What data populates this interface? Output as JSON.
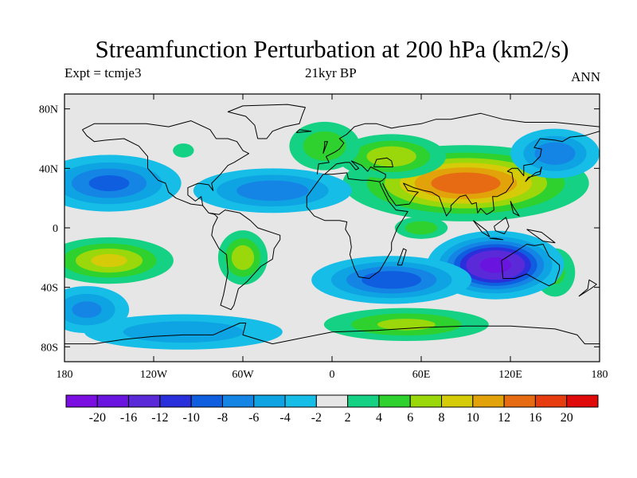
{
  "title": "Streamfunction Perturbation at 200 hPa (km2/s)",
  "subtitle_left": "Expt = tcmje3",
  "subtitle_center": "21kyr BP",
  "subtitle_right": "ANN",
  "map": {
    "lon_range": [
      -180,
      180
    ],
    "lat_range": [
      -90,
      90
    ],
    "x_ticks": [
      {
        "value": -180,
        "label": "180"
      },
      {
        "value": -120,
        "label": "120W"
      },
      {
        "value": -60,
        "label": "60W"
      },
      {
        "value": 0,
        "label": "0"
      },
      {
        "value": 60,
        "label": "60E"
      },
      {
        "value": 120,
        "label": "120E"
      },
      {
        "value": 180,
        "label": "180"
      }
    ],
    "y_ticks": [
      {
        "value": 80,
        "label": "80N"
      },
      {
        "value": 40,
        "label": "40N"
      },
      {
        "value": 0,
        "label": "0"
      },
      {
        "value": -40,
        "label": "40S"
      },
      {
        "value": -80,
        "label": "80S"
      }
    ],
    "background_color": "#e6e6e6"
  },
  "colorbar": {
    "colors": [
      "#7b0ee0",
      "#6a14df",
      "#5b2ad8",
      "#2a2fdc",
      "#0f5ee0",
      "#1585e5",
      "#0ea3e2",
      "#16bde6",
      "#e6e6e6",
      "#14d184",
      "#2ed12d",
      "#9ad80c",
      "#d6cb08",
      "#e2a20a",
      "#e66b12",
      "#e63c10",
      "#e00a0a"
    ],
    "labels": [
      "-20",
      "-16",
      "-12",
      "-10",
      "-8",
      "-6",
      "-4",
      "-2",
      "2",
      "4",
      "6",
      "8",
      "10",
      "12",
      "16",
      "20"
    ]
  },
  "fields": [
    {
      "lon": 90,
      "lat": 30,
      "amp": 14,
      "sx": 42,
      "sy": 13
    },
    {
      "lon": 40,
      "lat": 48,
      "amp": 8,
      "sx": 22,
      "sy": 9
    },
    {
      "lon": -5,
      "lat": 55,
      "amp": 6,
      "sx": 16,
      "sy": 11
    },
    {
      "lon": -100,
      "lat": 52,
      "amp": 4,
      "sx": 6,
      "sy": 4
    },
    {
      "lon": -150,
      "lat": 30,
      "amp": -9,
      "sx": 28,
      "sy": 11
    },
    {
      "lon": -40,
      "lat": 25,
      "amp": -8,
      "sx": 32,
      "sy": 9
    },
    {
      "lon": 150,
      "lat": 50,
      "amp": -8,
      "sx": 18,
      "sy": 10
    },
    {
      "lon": -150,
      "lat": -22,
      "amp": 9,
      "sx": 25,
      "sy": 9
    },
    {
      "lon": -60,
      "lat": -20,
      "amp": 8,
      "sx": 10,
      "sy": 11
    },
    {
      "lon": 60,
      "lat": 0,
      "amp": 6,
      "sx": 12,
      "sy": 5
    },
    {
      "lon": 50,
      "lat": -65,
      "amp": 7,
      "sx": 35,
      "sy": 7
    },
    {
      "lon": 150,
      "lat": -30,
      "amp": 5,
      "sx": 10,
      "sy": 12
    },
    {
      "lon": 110,
      "lat": -25,
      "amp": -18,
      "sx": 22,
      "sy": 11
    },
    {
      "lon": 40,
      "lat": -35,
      "amp": -10,
      "sx": 30,
      "sy": 9
    },
    {
      "lon": -100,
      "lat": -70,
      "amp": -6,
      "sx": 45,
      "sy": 8
    },
    {
      "lon": -165,
      "lat": -55,
      "amp": -7,
      "sx": 18,
      "sy": 10
    }
  ],
  "coastlines": [
    [
      [
        -168,
        66
      ],
      [
        -160,
        70
      ],
      [
        -140,
        70
      ],
      [
        -125,
        70
      ],
      [
        -110,
        68
      ],
      [
        -95,
        72
      ],
      [
        -82,
        66
      ],
      [
        -78,
        60
      ],
      [
        -70,
        60
      ],
      [
        -64,
        58
      ],
      [
        -60,
        52
      ],
      [
        -56,
        50
      ],
      [
        -66,
        44
      ],
      [
        -70,
        42
      ],
      [
        -76,
        35
      ],
      [
        -81,
        30
      ],
      [
        -80,
        25
      ],
      [
        -83,
        29
      ],
      [
        -90,
        30
      ],
      [
        -97,
        27
      ],
      [
        -97,
        22
      ],
      [
        -92,
        18
      ],
      [
        -88,
        21
      ],
      [
        -87,
        15
      ],
      [
        -83,
        10
      ],
      [
        -79,
        9
      ],
      [
        -77,
        7
      ],
      [
        -80,
        1
      ],
      [
        -81,
        -5
      ],
      [
        -76,
        -14
      ],
      [
        -71,
        -18
      ],
      [
        -70,
        -30
      ],
      [
        -73,
        -45
      ],
      [
        -75,
        -52
      ],
      [
        -68,
        -55
      ],
      [
        -66,
        -52
      ],
      [
        -63,
        -41
      ],
      [
        -57,
        -36
      ],
      [
        -48,
        -26
      ],
      [
        -40,
        -21
      ],
      [
        -39,
        -14
      ],
      [
        -35,
        -8
      ],
      [
        -35,
        -5
      ],
      [
        -50,
        0
      ],
      [
        -55,
        5
      ],
      [
        -62,
        10
      ],
      [
        -72,
        12
      ],
      [
        -76,
        9
      ],
      [
        -83,
        10
      ],
      [
        -87,
        15
      ],
      [
        -95,
        16
      ],
      [
        -105,
        20
      ],
      [
        -110,
        24
      ],
      [
        -112,
        30
      ],
      [
        -117,
        32
      ],
      [
        -124,
        40
      ],
      [
        -124,
        48
      ],
      [
        -130,
        55
      ],
      [
        -140,
        60
      ],
      [
        -152,
        59
      ],
      [
        -160,
        58
      ],
      [
        -165,
        62
      ],
      [
        -168,
        66
      ]
    ],
    [
      [
        -10,
        36
      ],
      [
        -9,
        43
      ],
      [
        -2,
        44
      ],
      [
        -4,
        48
      ],
      [
        2,
        51
      ],
      [
        5,
        53
      ],
      [
        8,
        57
      ],
      [
        5,
        60
      ],
      [
        10,
        63
      ],
      [
        15,
        68
      ],
      [
        22,
        70
      ],
      [
        30,
        70
      ],
      [
        40,
        67
      ],
      [
        45,
        68
      ],
      [
        60,
        70
      ],
      [
        70,
        73
      ],
      [
        80,
        73
      ],
      [
        100,
        77
      ],
      [
        115,
        73
      ],
      [
        130,
        71
      ],
      [
        150,
        71
      ],
      [
        170,
        69
      ],
      [
        180,
        68
      ]
    ],
    [
      [
        -6,
        36
      ],
      [
        -17,
        21
      ],
      [
        -17,
        14
      ],
      [
        -12,
        8
      ],
      [
        -5,
        5
      ],
      [
        5,
        5
      ],
      [
        10,
        4
      ],
      [
        9,
        -1
      ],
      [
        12,
        -6
      ],
      [
        13,
        -13
      ],
      [
        12,
        -18
      ],
      [
        15,
        -27
      ],
      [
        18,
        -33
      ],
      [
        25,
        -34
      ],
      [
        32,
        -29
      ],
      [
        35,
        -24
      ],
      [
        40,
        -15
      ],
      [
        40,
        -10
      ],
      [
        44,
        0
      ],
      [
        51,
        11
      ],
      [
        43,
        12
      ],
      [
        38,
        18
      ],
      [
        33,
        28
      ],
      [
        32,
        31
      ],
      [
        25,
        32
      ],
      [
        20,
        32
      ],
      [
        11,
        33
      ],
      [
        10,
        37
      ],
      [
        0,
        36
      ],
      [
        -6,
        36
      ]
    ],
    [
      [
        34,
        30
      ],
      [
        38,
        22
      ],
      [
        43,
        15
      ],
      [
        52,
        16
      ],
      [
        56,
        22
      ],
      [
        58,
        24
      ],
      [
        51,
        25
      ],
      [
        48,
        30
      ],
      [
        55,
        27
      ],
      [
        62,
        25
      ],
      [
        67,
        24
      ],
      [
        72,
        21
      ],
      [
        77,
        8
      ],
      [
        80,
        12
      ],
      [
        80,
        15
      ],
      [
        86,
        21
      ],
      [
        90,
        22
      ],
      [
        94,
        16
      ],
      [
        97,
        17
      ],
      [
        98,
        10
      ],
      [
        100,
        13
      ],
      [
        104,
        9
      ],
      [
        106,
        10
      ],
      [
        109,
        12
      ],
      [
        108,
        21
      ],
      [
        111,
        21
      ],
      [
        117,
        24
      ],
      [
        120,
        28
      ],
      [
        122,
        31
      ],
      [
        121,
        37
      ],
      [
        118,
        38
      ],
      [
        121,
        40
      ],
      [
        125,
        40
      ],
      [
        129,
        35
      ],
      [
        129,
        42
      ],
      [
        135,
        43
      ],
      [
        140,
        48
      ],
      [
        141,
        53
      ],
      [
        136,
        54
      ],
      [
        140,
        60
      ],
      [
        150,
        59
      ],
      [
        155,
        58
      ],
      [
        160,
        61
      ],
      [
        170,
        62
      ],
      [
        180,
        65
      ]
    ],
    [
      [
        -5,
        36
      ],
      [
        3,
        43
      ],
      [
        9,
        44
      ],
      [
        12,
        44
      ],
      [
        16,
        39
      ],
      [
        18,
        40
      ],
      [
        13,
        45
      ],
      [
        20,
        42
      ],
      [
        24,
        38
      ],
      [
        26,
        41
      ],
      [
        36,
        36
      ],
      [
        36,
        34
      ],
      [
        34,
        32
      ],
      [
        32,
        31
      ]
    ],
    [
      [
        28,
        41
      ],
      [
        41,
        41
      ],
      [
        40,
        45
      ],
      [
        37,
        47
      ],
      [
        30,
        46
      ],
      [
        28,
        41
      ]
    ],
    [
      [
        114,
        -22
      ],
      [
        115,
        -34
      ],
      [
        123,
        -34
      ],
      [
        131,
        -31
      ],
      [
        138,
        -35
      ],
      [
        146,
        -39
      ],
      [
        150,
        -37
      ],
      [
        153,
        -28
      ],
      [
        153,
        -25
      ],
      [
        146,
        -19
      ],
      [
        142,
        -11
      ],
      [
        136,
        -12
      ],
      [
        131,
        -11
      ],
      [
        125,
        -15
      ],
      [
        114,
        -22
      ]
    ],
    [
      [
        -50,
        60
      ],
      [
        -44,
        60
      ],
      [
        -40,
        65
      ],
      [
        -32,
        68
      ],
      [
        -22,
        70
      ],
      [
        -20,
        76
      ],
      [
        -18,
        81
      ],
      [
        -30,
        83
      ],
      [
        -60,
        82
      ],
      [
        -70,
        78
      ],
      [
        -58,
        75
      ],
      [
        -52,
        69
      ],
      [
        -50,
        60
      ]
    ],
    [
      [
        -180,
        -78
      ],
      [
        -160,
        -78
      ],
      [
        -140,
        -75
      ],
      [
        -120,
        -73
      ],
      [
        -100,
        -72
      ],
      [
        -80,
        -72
      ],
      [
        -62,
        -64
      ],
      [
        -58,
        -64
      ],
      [
        -60,
        -72
      ],
      [
        -40,
        -78
      ],
      [
        -20,
        -74
      ],
      [
        0,
        -70
      ],
      [
        30,
        -69
      ],
      [
        60,
        -67
      ],
      [
        90,
        -66
      ],
      [
        120,
        -66
      ],
      [
        150,
        -68
      ],
      [
        165,
        -72
      ],
      [
        170,
        -78
      ],
      [
        180,
        -78
      ]
    ],
    [
      [
        130,
        31
      ],
      [
        132,
        34
      ],
      [
        136,
        35
      ],
      [
        140,
        36
      ],
      [
        141,
        41
      ],
      [
        140,
        38
      ],
      [
        137,
        37
      ],
      [
        132,
        33
      ],
      [
        130,
        31
      ]
    ],
    [
      [
        -6,
        50
      ],
      [
        -3,
        58
      ],
      [
        -5,
        58
      ],
      [
        -5,
        55
      ],
      [
        -6,
        50
      ]
    ],
    [
      [
        95,
        5
      ],
      [
        104,
        -2
      ],
      [
        106,
        -6
      ],
      [
        101,
        -3
      ],
      [
        95,
        5
      ]
    ],
    [
      [
        106,
        -7
      ],
      [
        115,
        -8
      ],
      [
        110,
        -7
      ],
      [
        106,
        -7
      ]
    ],
    [
      [
        109,
        1
      ],
      [
        117,
        7
      ],
      [
        119,
        1
      ],
      [
        116,
        -4
      ],
      [
        110,
        -2
      ],
      [
        109,
        1
      ]
    ],
    [
      [
        131,
        -1
      ],
      [
        141,
        -3
      ],
      [
        150,
        -10
      ],
      [
        142,
        -9
      ],
      [
        131,
        -1
      ]
    ],
    [
      [
        166,
        -46
      ],
      [
        174,
        -41
      ],
      [
        178,
        -38
      ],
      [
        173,
        -35
      ],
      [
        172,
        -41
      ],
      [
        166,
        -46
      ]
    ],
    [
      [
        44,
        -25
      ],
      [
        48,
        -14
      ],
      [
        50,
        -15
      ],
      [
        47,
        -25
      ],
      [
        44,
        -25
      ]
    ],
    [
      [
        -24,
        64
      ],
      [
        -14,
        65
      ],
      [
        -22,
        66
      ],
      [
        -24,
        64
      ]
    ],
    [
      [
        120,
        18
      ],
      [
        122,
        14
      ],
      [
        126,
        8
      ],
      [
        122,
        10
      ],
      [
        120,
        18
      ]
    ]
  ]
}
